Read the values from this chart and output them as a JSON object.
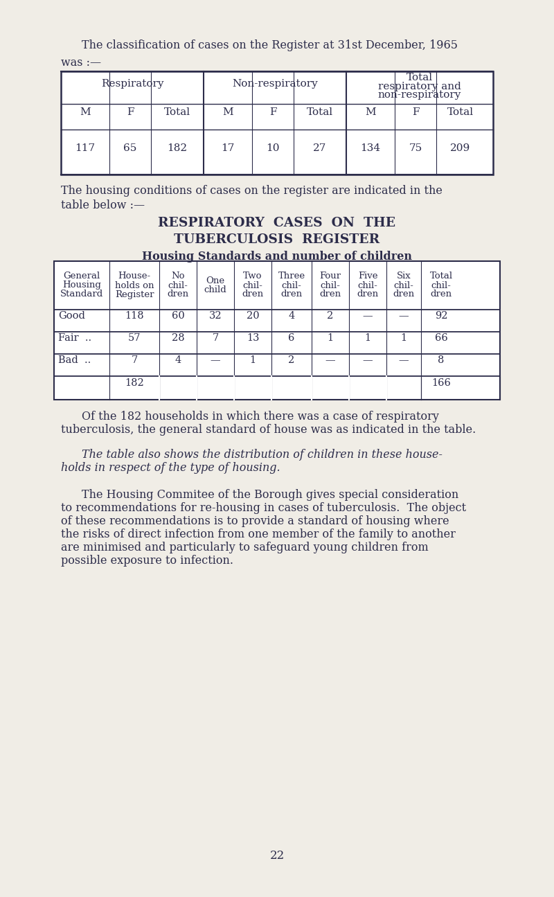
{
  "bg_color": "#f0ede6",
  "text_color": "#2c2c4a",
  "page_title_line1": "The classification of cases on the Register at 31st December, 1965",
  "page_title_line2": "was :—",
  "table1_header_row2": [
    "M",
    "F",
    "Total",
    "M",
    "F",
    "Total",
    "M",
    "F",
    "Total"
  ],
  "table1_data": [
    "117",
    "65",
    "182",
    "17",
    "10",
    "27",
    "134",
    "75",
    "209"
  ],
  "section_title1": "RESPIRATORY  CASES  ON  THE",
  "section_title2": "TUBERCULOSIS  REGISTER",
  "section_subtitle": "Housing Standards and number of children",
  "table2_col_headers": [
    "General\nHousing\nStandard",
    "House-\nholds on\nRegister",
    "No\nchil-\ndren",
    "One\nchild",
    "Two\nchil-\ndren",
    "Three\nchil-\ndren",
    "Four\nchil-\ndren",
    "Five\nchil-\ndren",
    "Six\nchil-\ndren",
    "Total\nchil-\ndren"
  ],
  "table2_rows": [
    [
      "Good",
      "118",
      "60",
      "32",
      "20",
      "4",
      "2",
      "—",
      "—",
      "92"
    ],
    [
      "Fair  ..",
      "57",
      "28",
      "7",
      "13",
      "6",
      "1",
      "1",
      "1",
      "66"
    ],
    [
      "Bad  ..",
      "7",
      "4",
      "—",
      "1",
      "2",
      "—",
      "—",
      "—",
      "8"
    ],
    [
      "",
      "182",
      "",
      "",
      "",
      "",
      "",
      "",
      "",
      "166"
    ]
  ],
  "para1_l1": "Of the 182 households in which there was a case of respiratory",
  "para1_l2": "tuberculosis, the general standard of house was as indicated in the table.",
  "para2_l1": "The table also shows the distribution of children in these house-",
  "para2_l2": "holds in respect of the type of housing.",
  "para3_lines": [
    "The Housing Commitee of the Borough gives special consideration",
    "to recommendations for re-housing in cases of tuberculosis.  The object",
    "of these recommendations is to provide a standard of housing where",
    "the risks of direct infection from one member of the family to another",
    "are minimised and particularly to safeguard young children from",
    "possible exposure to infection."
  ],
  "page_number": "22"
}
